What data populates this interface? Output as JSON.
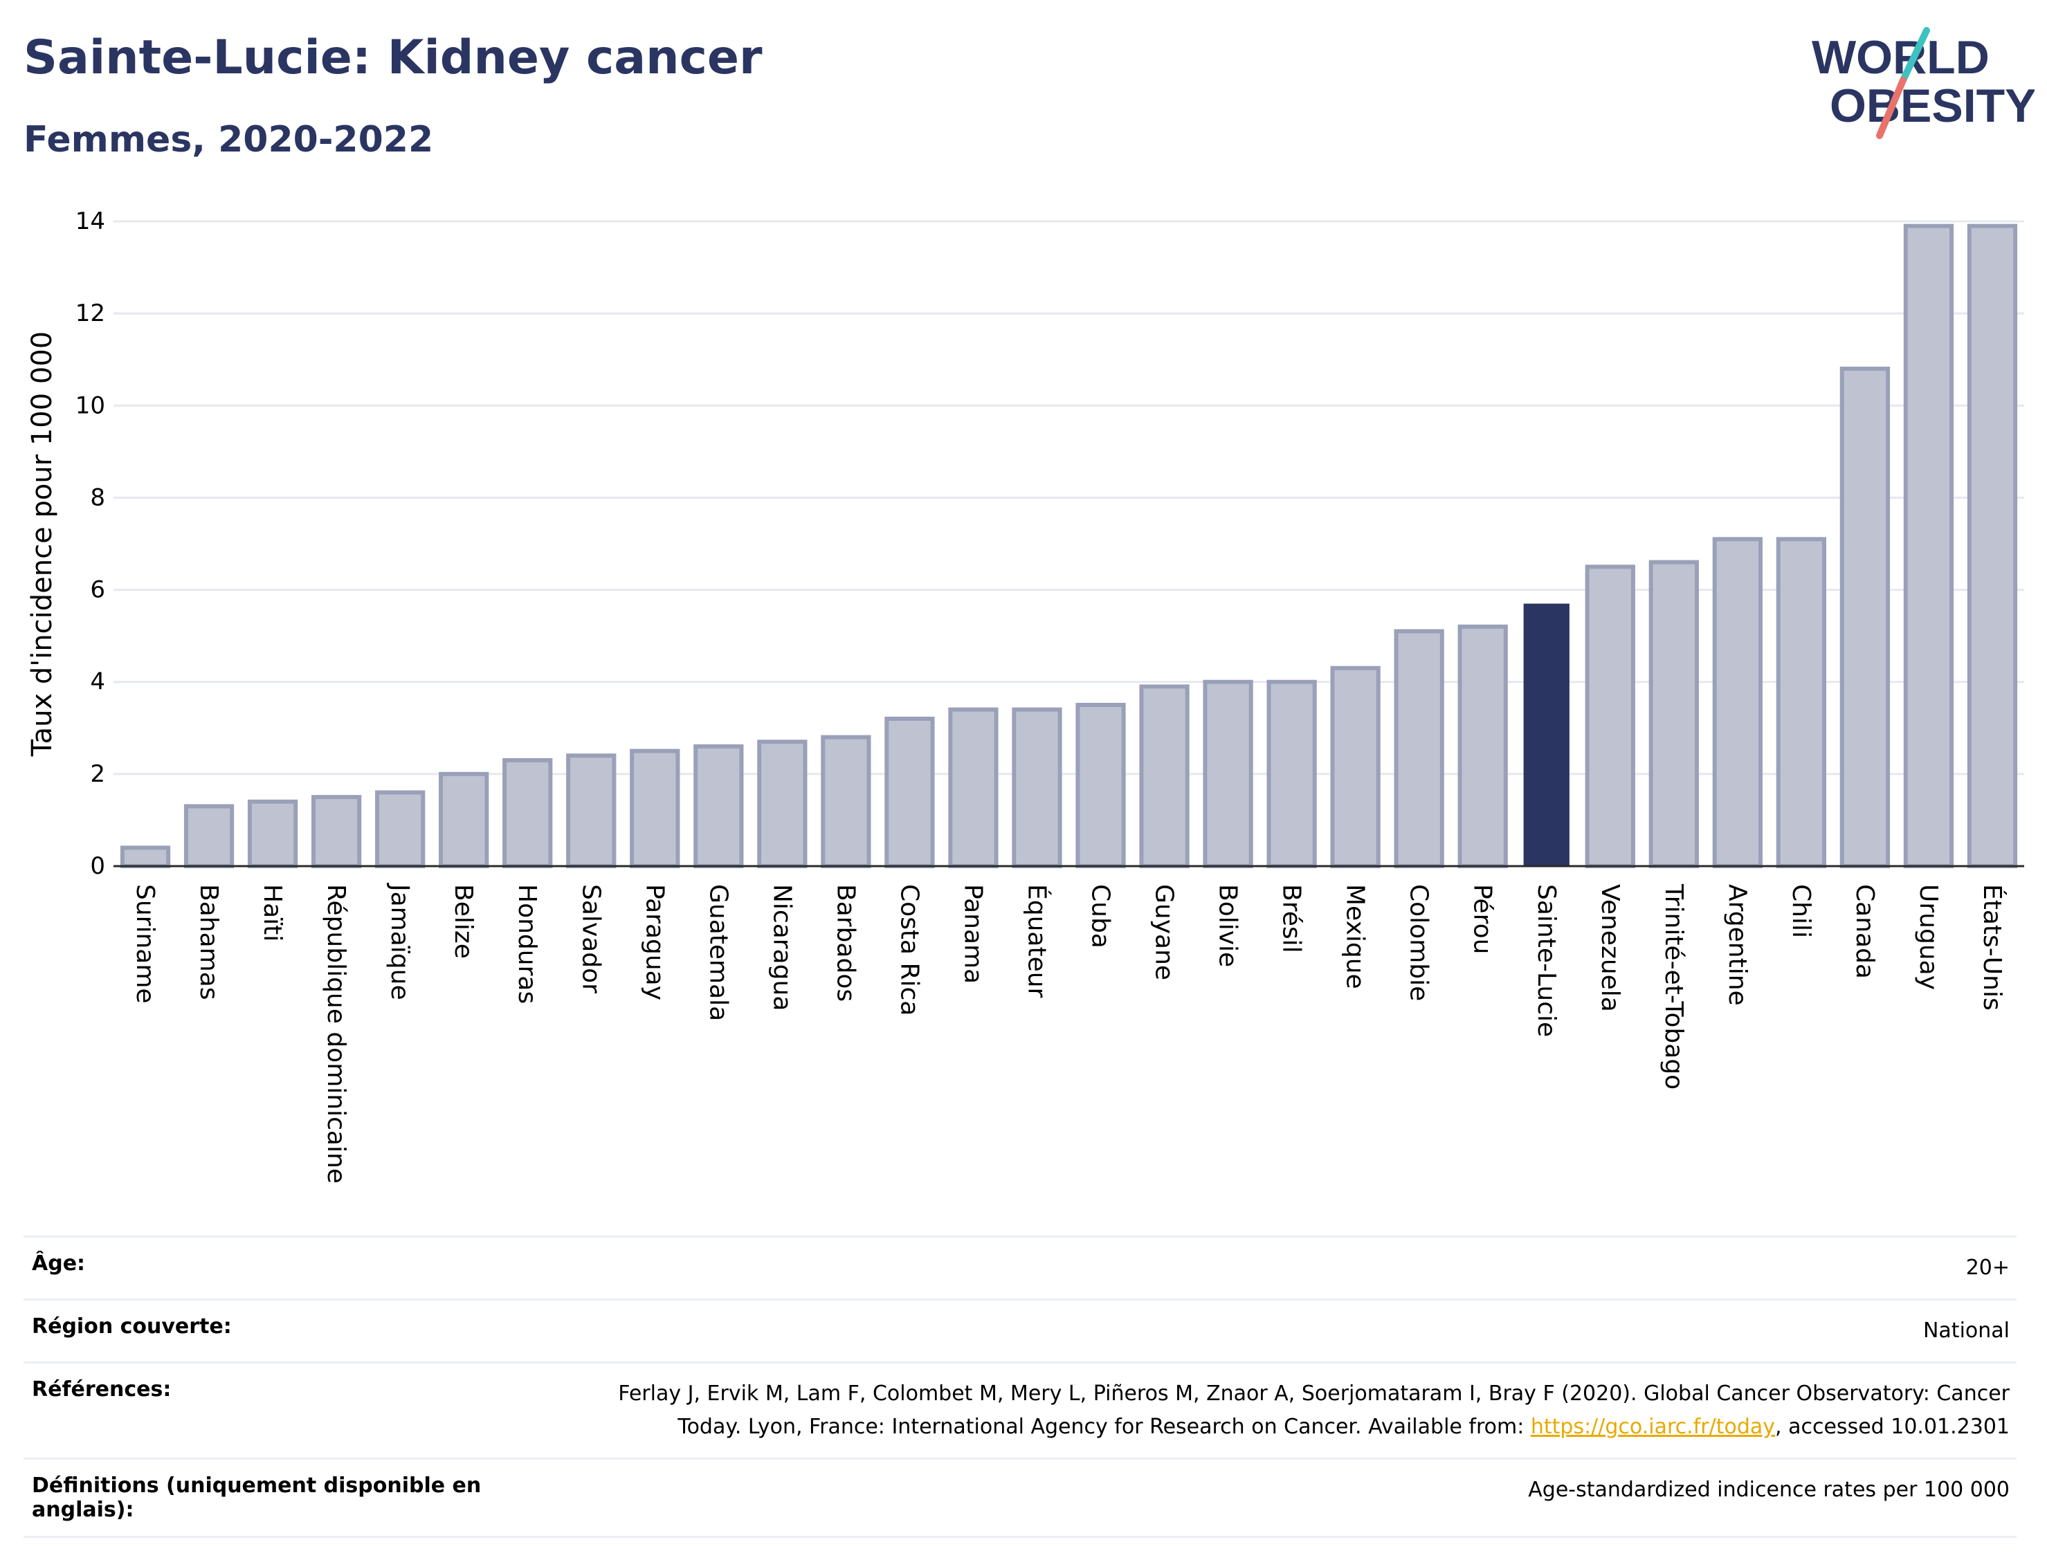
{
  "header": {
    "title": "Sainte-Lucie: Kidney cancer",
    "subtitle": "Femmes, 2020-2022"
  },
  "logo": {
    "line1": "WORLD",
    "line2": "OBESITY",
    "colors": {
      "text": "#2b3562",
      "slash_top": "#3ec1c1",
      "slash_bottom": "#e8736b"
    }
  },
  "colors": {
    "bar_default": "#bfc3d1",
    "bar_default_stroke": "#9aa0b8",
    "bar_highlight": "#2b3562",
    "grid": "#e6e8ee",
    "axis": "#2b2b2b",
    "title": "#2b3562",
    "link": "#e8a900"
  },
  "chart_data": {
    "type": "bar",
    "title": "Sainte-Lucie: Kidney cancer",
    "subtitle": "Femmes, 2020-2022",
    "xlabel": "",
    "ylabel": "Taux d'incidence pour 100 000",
    "ylim": [
      0,
      14
    ],
    "yticks": [
      0,
      2,
      4,
      6,
      8,
      10,
      12,
      14
    ],
    "grid": true,
    "highlight": "Sainte-Lucie",
    "categories": [
      "Suriname",
      "Bahamas",
      "Haïti",
      "République dominicaine",
      "Jamaïque",
      "Belize",
      "Honduras",
      "Salvador",
      "Paraguay",
      "Guatemala",
      "Nicaragua",
      "Barbados",
      "Costa Rica",
      "Panama",
      "Équateur",
      "Cuba",
      "Guyane",
      "Bolivie",
      "Brésil",
      "Mexique",
      "Colombie",
      "Pérou",
      "Sainte-Lucie",
      "Venezuela",
      "Trinité-et-Tobago",
      "Argentine",
      "Chili",
      "Canada",
      "Uruguay",
      "États-Unis"
    ],
    "values": [
      0.4,
      1.3,
      1.4,
      1.5,
      1.6,
      2.0,
      2.3,
      2.4,
      2.5,
      2.6,
      2.7,
      2.8,
      3.2,
      3.4,
      3.4,
      3.5,
      3.9,
      4.0,
      4.0,
      4.3,
      5.1,
      5.2,
      5.7,
      6.5,
      6.6,
      7.1,
      7.1,
      10.8,
      13.9,
      13.9
    ]
  },
  "info": {
    "age": {
      "label": "Âge:",
      "value": "20+"
    },
    "region": {
      "label": "Région couverte:",
      "value": "National"
    },
    "references": {
      "label": "Références:",
      "text1": "Ferlay J, Ervik M, Lam F, Colombet M, Mery L, Piñeros M, Znaor A, Soerjomataram I, Bray F (2020). Global Cancer Observatory: Cancer",
      "text2": "Today. Lyon, France: International Agency for Research on Cancer. Available from: ",
      "link": "https://gco.iarc.fr/today",
      "text3": ", accessed 10.01.2301"
    },
    "definitions": {
      "label": "Définitions (uniquement disponible en anglais):",
      "value": "Age-standardized indicence rates per 100 000"
    }
  }
}
